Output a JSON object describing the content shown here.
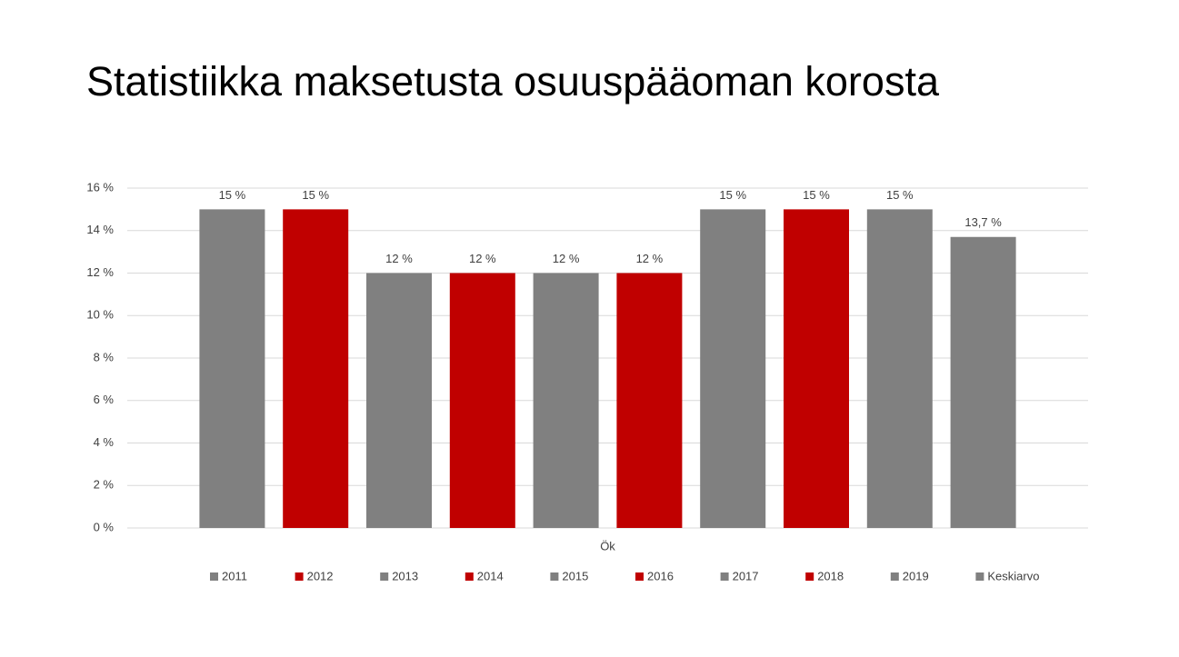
{
  "chart_data": {
    "type": "bar",
    "title": "Statistiikka maksetusta osuuspääoman korosta",
    "categories": [
      "Ök"
    ],
    "series": [
      {
        "name": "2011",
        "color": "#808080",
        "values": [
          15
        ],
        "value_labels": [
          "15 %"
        ]
      },
      {
        "name": "2012",
        "color": "#c00000",
        "values": [
          15
        ],
        "value_labels": [
          "15 %"
        ]
      },
      {
        "name": "2013",
        "color": "#808080",
        "values": [
          12
        ],
        "value_labels": [
          "12 %"
        ]
      },
      {
        "name": "2014",
        "color": "#c00000",
        "values": [
          12
        ],
        "value_labels": [
          "12 %"
        ]
      },
      {
        "name": "2015",
        "color": "#808080",
        "values": [
          12
        ],
        "value_labels": [
          "12 %"
        ]
      },
      {
        "name": "2016",
        "color": "#c00000",
        "values": [
          12
        ],
        "value_labels": [
          "12 %"
        ]
      },
      {
        "name": "2017",
        "color": "#808080",
        "values": [
          15
        ],
        "value_labels": [
          "15 %"
        ]
      },
      {
        "name": "2018",
        "color": "#c00000",
        "values": [
          15
        ],
        "value_labels": [
          "15 %"
        ]
      },
      {
        "name": "2019",
        "color": "#808080",
        "values": [
          15
        ],
        "value_labels": [
          "15 %"
        ]
      },
      {
        "name": "Keskiarvo",
        "color": "#808080",
        "values": [
          13.7
        ],
        "value_labels": [
          "13,7 %"
        ]
      }
    ],
    "ylim": [
      0,
      16
    ],
    "yticks": [
      {
        "value": 0,
        "label": "0 %"
      },
      {
        "value": 2,
        "label": "2 %"
      },
      {
        "value": 4,
        "label": "4 %"
      },
      {
        "value": 6,
        "label": "6 %"
      },
      {
        "value": 8,
        "label": "8 %"
      },
      {
        "value": 10,
        "label": "10 %"
      },
      {
        "value": 12,
        "label": "12 %"
      },
      {
        "value": 14,
        "label": "14 %"
      },
      {
        "value": 16,
        "label": "16 %"
      }
    ],
    "grid": true,
    "legend": "bottom"
  }
}
